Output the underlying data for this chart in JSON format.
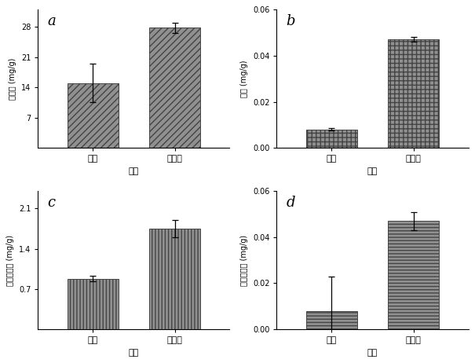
{
  "subplots": [
    {
      "label": "a",
      "ylabel": "淡糖量 (mg/g)",
      "xlabel": "处理",
      "categories": [
        "对照",
        "本发明"
      ],
      "values": [
        15.0,
        27.8
      ],
      "errors": [
        4.5,
        1.2
      ],
      "ylim": [
        0,
        32
      ],
      "yticks": [
        7,
        14,
        21,
        28
      ],
      "hatch": "////",
      "bar_color": "#909090",
      "edge_color": "#444444"
    },
    {
      "label": "b",
      "ylabel": "脆糖 (mg/g)",
      "xlabel": "处理",
      "categories": [
        "对照",
        "本发明"
      ],
      "values": [
        0.008,
        0.047
      ],
      "errors": [
        0.0005,
        0.001
      ],
      "ylim": [
        0,
        0.06
      ],
      "yticks": [
        0.0,
        0.02,
        0.04,
        0.06
      ],
      "hatch": "+++",
      "bar_color": "#909090",
      "edge_color": "#444444"
    },
    {
      "label": "c",
      "ylabel": "过氧化氢酶 (mg/g)",
      "xlabel": "处理",
      "categories": [
        "对照",
        "本发明"
      ],
      "values": [
        0.88,
        1.75
      ],
      "errors": [
        0.05,
        0.15
      ],
      "ylim": [
        0,
        2.4
      ],
      "yticks": [
        0.7,
        1.4,
        2.1
      ],
      "hatch": "||||",
      "bar_color": "#909090",
      "edge_color": "#444444"
    },
    {
      "label": "d",
      "ylabel": "标志性脂质 (mg/g)",
      "xlabel": "处理",
      "categories": [
        "对照",
        "本发明"
      ],
      "values": [
        0.008,
        0.047
      ],
      "errors": [
        0.015,
        0.004
      ],
      "ylim": [
        0,
        0.06
      ],
      "yticks": [
        0.0,
        0.02,
        0.04,
        0.06
      ],
      "hatch": "----",
      "bar_color": "#909090",
      "edge_color": "#444444"
    }
  ],
  "fig_width": 6.05,
  "fig_height": 4.62,
  "dpi": 100
}
